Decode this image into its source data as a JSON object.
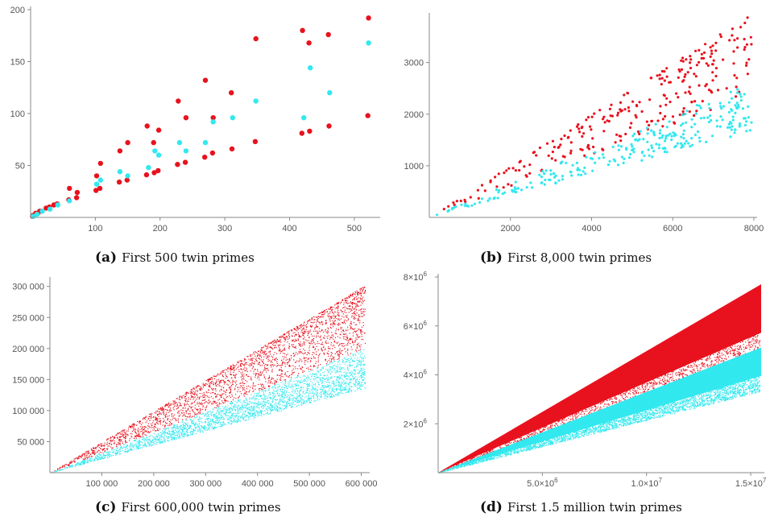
{
  "chart_data": [
    {
      "id": "a",
      "type": "scatter",
      "caption_label": "(a)",
      "caption_text": "First 500 twin primes",
      "xlim": [
        0,
        535
      ],
      "ylim": [
        0,
        200
      ],
      "xticks": [
        {
          "v": 100,
          "label": "100"
        },
        {
          "v": 200,
          "label": "200"
        },
        {
          "v": 300,
          "label": "300"
        },
        {
          "v": 400,
          "label": "400"
        },
        {
          "v": 500,
          "label": "500"
        }
      ],
      "yticks": [
        {
          "v": 50,
          "label": "50"
        },
        {
          "v": 100,
          "label": "100"
        },
        {
          "v": 150,
          "label": "150"
        },
        {
          "v": 200,
          "label": "200"
        }
      ],
      "series": [
        {
          "color": "#e8121e",
          "points": [
            [
              3,
              1
            ],
            [
              5,
              2
            ],
            [
              11,
              4
            ],
            [
              17,
              6
            ],
            [
              29,
              10
            ],
            [
              41,
              13
            ],
            [
              59,
              17
            ],
            [
              71,
              19
            ],
            [
              101,
              26
            ],
            [
              107,
              28
            ],
            [
              137,
              34
            ],
            [
              149,
              36
            ],
            [
              179,
              41
            ],
            [
              191,
              43
            ],
            [
              197,
              45
            ],
            [
              227,
              51
            ],
            [
              239,
              53
            ],
            [
              269,
              58
            ],
            [
              281,
              62
            ],
            [
              311,
              66
            ],
            [
              347,
              73
            ],
            [
              419,
              81
            ],
            [
              431,
              83
            ],
            [
              461,
              88
            ],
            [
              521,
              98
            ],
            [
              4,
              2
            ],
            [
              8,
              4
            ],
            [
              14,
              6
            ],
            [
              24,
              9
            ],
            [
              36,
              12
            ],
            [
              60,
              28
            ],
            [
              72,
              24
            ],
            [
              102,
              40
            ],
            [
              108,
              52
            ],
            [
              138,
              64
            ],
            [
              150,
              72
            ],
            [
              180,
              88
            ],
            [
              190,
              72
            ],
            [
              198,
              84
            ],
            [
              228,
              112
            ],
            [
              240,
              96
            ],
            [
              270,
              132
            ],
            [
              282,
              96
            ],
            [
              310,
              120
            ],
            [
              348,
              172
            ],
            [
              420,
              180
            ],
            [
              430,
              168
            ],
            [
              460,
              176
            ],
            [
              522,
              192
            ]
          ]
        },
        {
          "color": "#33e8ef",
          "points": [
            [
              4,
              1
            ],
            [
              10,
              3
            ],
            [
              18,
              6
            ],
            [
              30,
              8
            ],
            [
              42,
              12
            ],
            [
              60,
              16
            ],
            [
              102,
              32
            ],
            [
              108,
              36
            ],
            [
              138,
              44
            ],
            [
              150,
              40
            ],
            [
              182,
              48
            ],
            [
              192,
              64
            ],
            [
              198,
              60
            ],
            [
              230,
              72
            ],
            [
              240,
              64
            ],
            [
              270,
              72
            ],
            [
              282,
              92
            ],
            [
              312,
              96
            ],
            [
              348,
              112
            ],
            [
              422,
              96
            ],
            [
              432,
              144
            ],
            [
              462,
              120
            ],
            [
              522,
              168
            ]
          ]
        }
      ]
    },
    {
      "id": "b",
      "type": "scatter",
      "caption_label": "(b)",
      "caption_text": "First 8,000 twin primes",
      "xlim": [
        0,
        8000
      ],
      "ylim": [
        0,
        3900
      ],
      "xticks": [
        {
          "v": 2000,
          "label": "2000"
        },
        {
          "v": 4000,
          "label": "4000"
        },
        {
          "v": 6000,
          "label": "6000"
        },
        {
          "v": 8000,
          "label": "8000"
        }
      ],
      "yticks": [
        {
          "v": 1000,
          "label": "1000"
        },
        {
          "v": 2000,
          "label": "2000"
        },
        {
          "v": 3000,
          "label": "3000"
        }
      ],
      "series": [
        {
          "color": "#e8121e",
          "upper_slope": 0.495,
          "lower_slope": 0.3,
          "count": 260
        },
        {
          "color": "#33e8ef",
          "upper_slope": 0.33,
          "lower_slope": 0.21,
          "count": 260
        }
      ]
    },
    {
      "id": "c",
      "type": "scatter",
      "caption_label": "(c)",
      "caption_text": "First 600,000 twin primes",
      "xlim": [
        0,
        610000
      ],
      "ylim": [
        0,
        310000
      ],
      "xticks": [
        {
          "v": 100000,
          "label": "100 000"
        },
        {
          "v": 200000,
          "label": "200 000"
        },
        {
          "v": 300000,
          "label": "300 000"
        },
        {
          "v": 400000,
          "label": "400 000"
        },
        {
          "v": 500000,
          "label": "500 000"
        },
        {
          "v": 600000,
          "label": "600 000"
        }
      ],
      "yticks": [
        {
          "v": 50000,
          "label": "50 000"
        },
        {
          "v": 100000,
          "label": "100 000"
        },
        {
          "v": 150000,
          "label": "150 000"
        },
        {
          "v": 200000,
          "label": "200 000"
        },
        {
          "v": 250000,
          "label": "250 000"
        },
        {
          "v": 300000,
          "label": "300 000"
        }
      ],
      "series": [
        {
          "color": "#e8121e",
          "upper_slope": 0.497,
          "lower_slope": 0.33,
          "count": 2600
        },
        {
          "color": "#33e8ef",
          "upper_slope": 0.33,
          "lower_slope": 0.225,
          "count": 2600
        }
      ]
    },
    {
      "id": "d",
      "type": "scatter",
      "caption_label": "(d)",
      "caption_text": "First 1.5 million twin primes",
      "xlim": [
        0,
        15500000
      ],
      "ylim": [
        0,
        8000000
      ],
      "xticks": [
        {
          "v": 5000000,
          "label": "5.0×10",
          "exp": "6"
        },
        {
          "v": 10000000,
          "label": "1.0×10",
          "exp": "7"
        },
        {
          "v": 15000000,
          "label": "1.5×10",
          "exp": "7"
        }
      ],
      "yticks": [
        {
          "v": 2000000,
          "label": "2×10",
          "exp": "6"
        },
        {
          "v": 4000000,
          "label": "4×10",
          "exp": "6"
        },
        {
          "v": 6000000,
          "label": "6×10",
          "exp": "6"
        },
        {
          "v": 8000000,
          "label": "8×10",
          "exp": "6"
        }
      ],
      "series": [
        {
          "color": "#e8121e",
          "upper_slope": 0.497,
          "lower_slope": 0.3,
          "count": 5000
        },
        {
          "color": "#33e8ef",
          "upper_slope": 0.33,
          "lower_slope": 0.215,
          "count": 5000
        }
      ]
    }
  ]
}
